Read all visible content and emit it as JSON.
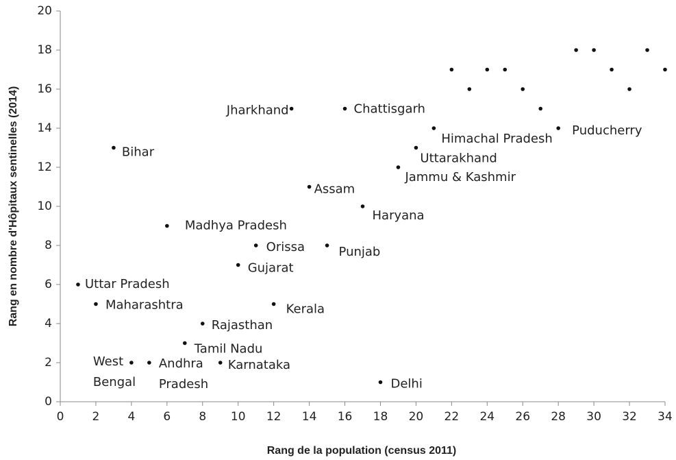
{
  "chart_data": {
    "type": "scatter",
    "x_label": "Rang de la population  (census 2011)",
    "y_label": "Rang en nombre d'Hôpitaux sentinelles (2014)",
    "x": [
      1,
      2,
      3,
      4,
      5,
      6,
      7,
      8,
      9,
      10,
      11,
      12,
      13,
      14,
      15,
      16,
      17,
      18,
      19,
      20,
      21,
      22,
      23,
      24,
      25,
      26,
      27,
      28,
      29,
      30,
      31,
      32,
      33,
      34
    ],
    "y": [
      6,
      5,
      13,
      2,
      2,
      9,
      3,
      4,
      2,
      7,
      8,
      5,
      15,
      11,
      8,
      15,
      10,
      1,
      12,
      13,
      14,
      17,
      16,
      17,
      17,
      16,
      15,
      14,
      18,
      18,
      17,
      16,
      18,
      17
    ],
    "labels": [
      "Uttar Pradesh",
      "Maharashtra",
      "Bihar",
      "West\nBengal",
      "Andhra\nPradesh",
      "Madhya Pradesh",
      "Tamil Nadu",
      "Rajasthan",
      "Karnataka",
      "Gujarat",
      "Orissa",
      "Kerala",
      "Jharkhand",
      "Assam",
      "Punjab",
      "Chattisgarh",
      "Haryana",
      "Delhi",
      "Jammu & Kashmir",
      "Uttarakhand",
      "Himachal Pradesh",
      null,
      null,
      null,
      null,
      null,
      null,
      "Puducherry",
      null,
      null,
      null,
      null,
      null,
      null
    ],
    "color": "#111111",
    "xlim": [
      0,
      34
    ],
    "xticks": [
      0,
      2,
      4,
      6,
      8,
      10,
      12,
      14,
      16,
      18,
      20,
      22,
      24,
      26,
      28,
      30,
      32,
      34
    ],
    "ylim": [
      0,
      20
    ],
    "yticks": [
      0,
      2,
      4,
      6,
      8,
      10,
      12,
      14,
      16,
      18,
      20
    ]
  }
}
